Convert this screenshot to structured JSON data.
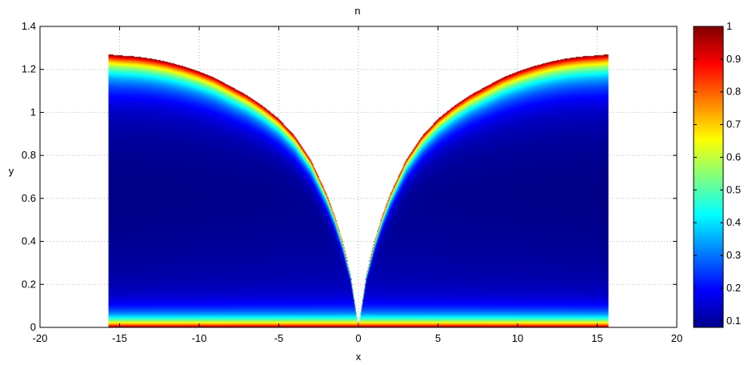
{
  "chart_data": {
    "type": "heatmap",
    "title": "n",
    "xlabel": "x",
    "ylabel": "y",
    "xlim": [
      -20,
      20
    ],
    "ylim": [
      0,
      1.4
    ],
    "x_ticks": [
      -20,
      -15,
      -10,
      -5,
      0,
      5,
      10,
      15,
      20
    ],
    "y_ticks": [
      0,
      0.2,
      0.4,
      0.6,
      0.8,
      1,
      1.2,
      1.4
    ],
    "x_tick_labels": [
      "-20",
      "-15",
      "-10",
      "-5",
      "0",
      "5",
      "10",
      "15",
      "20"
    ],
    "y_tick_labels": [
      "0",
      "0.2",
      "0.4",
      "0.6",
      "0.8",
      "1",
      "1.2",
      "1.4"
    ],
    "grid": true,
    "colormap": "jet",
    "colorbar": {
      "clim": [
        0.08,
        1
      ],
      "ticks": [
        0.1,
        0.2,
        0.3,
        0.4,
        0.5,
        0.6,
        0.7,
        0.8,
        0.9,
        1
      ],
      "tick_labels": [
        "0.1",
        "0.2",
        "0.3",
        "0.4",
        "0.5",
        "0.6",
        "0.7",
        "0.8",
        "0.9",
        "1"
      ],
      "placement": "right"
    },
    "domain": {
      "x_range": [
        -15.7,
        15.7
      ],
      "outline": [
        [
          0.0,
          0.0
        ],
        [
          0.5,
          0.25
        ],
        [
          1.0,
          0.4
        ],
        [
          1.5,
          0.52
        ],
        [
          2.0,
          0.62
        ],
        [
          3.0,
          0.78
        ],
        [
          4.0,
          0.89
        ],
        [
          5.0,
          0.97
        ],
        [
          6.0,
          1.03
        ],
        [
          7.0,
          1.08
        ],
        [
          8.0,
          1.12
        ],
        [
          9.0,
          1.16
        ],
        [
          10.0,
          1.19
        ],
        [
          11.0,
          1.215
        ],
        [
          12.0,
          1.235
        ],
        [
          13.0,
          1.25
        ],
        [
          14.0,
          1.26
        ],
        [
          15.0,
          1.265
        ],
        [
          15.7,
          1.27
        ]
      ],
      "symmetric_about_x0": true,
      "bottom_band_y": 0.02
    },
    "field_samples": [
      {
        "x": -12,
        "y": 0.65,
        "n": 0.09
      },
      {
        "x": -12,
        "y": 0.3,
        "n": 0.16
      },
      {
        "x": -12,
        "y": 0.15,
        "n": 0.23
      },
      {
        "x": -12,
        "y": 0.07,
        "n": 0.4
      },
      {
        "x": -12,
        "y": 0.01,
        "n": 1.0
      },
      {
        "x": -12,
        "y": 1.2,
        "n": 0.35
      },
      {
        "x": 0,
        "y": 0.05,
        "n": 0.75
      },
      {
        "x": 12,
        "y": 0.65,
        "n": 0.09
      },
      {
        "x": 12,
        "y": 1.2,
        "n": 0.35
      }
    ]
  }
}
